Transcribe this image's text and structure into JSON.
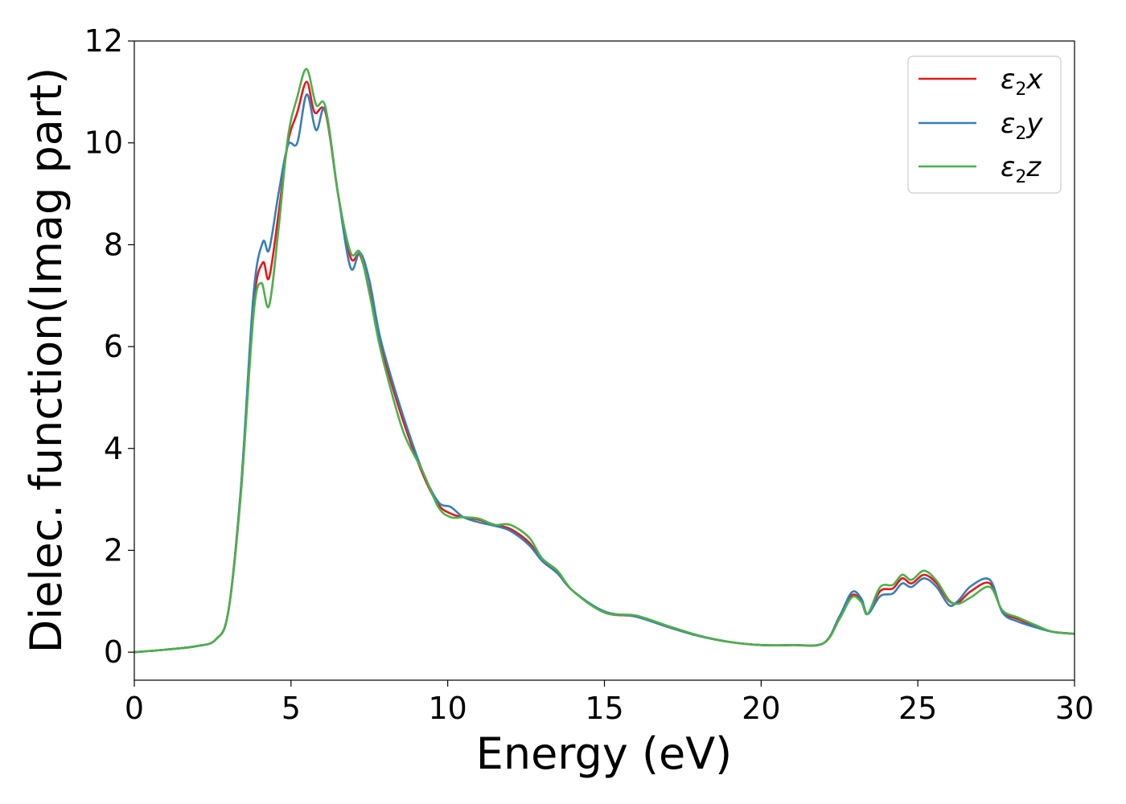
{
  "chart_data": {
    "type": "line",
    "title": "",
    "xlabel": "Energy (eV)",
    "ylabel": "Dielec. function(Imag part)",
    "xlim": [
      0,
      30
    ],
    "ylim": [
      -0.55,
      12
    ],
    "x_ticks": [
      0,
      5,
      10,
      15,
      20,
      25,
      30
    ],
    "y_ticks": [
      0,
      2,
      4,
      6,
      8,
      10,
      12
    ],
    "grid": false,
    "legend": {
      "position": "top-right"
    },
    "series": [
      {
        "name": "ε₂x",
        "legend": {
          "base": "ε",
          "sub": "2",
          "var": "x"
        },
        "color": "#e41a1c",
        "points": [
          [
            0,
            0
          ],
          [
            1,
            0.05
          ],
          [
            2,
            0.12
          ],
          [
            2.6,
            0.25
          ],
          [
            3.0,
            0.8
          ],
          [
            3.4,
            3.2
          ],
          [
            3.8,
            6.8
          ],
          [
            4.1,
            7.65
          ],
          [
            4.3,
            7.35
          ],
          [
            4.6,
            8.6
          ],
          [
            4.9,
            10.0
          ],
          [
            5.2,
            10.6
          ],
          [
            5.5,
            11.2
          ],
          [
            5.75,
            10.6
          ],
          [
            6.1,
            10.6
          ],
          [
            6.5,
            9.0
          ],
          [
            6.9,
            7.75
          ],
          [
            7.2,
            7.8
          ],
          [
            7.5,
            7.1
          ],
          [
            7.8,
            6.2
          ],
          [
            8.1,
            5.5
          ],
          [
            8.6,
            4.5
          ],
          [
            9.2,
            3.5
          ],
          [
            9.7,
            2.9
          ],
          [
            10.1,
            2.72
          ],
          [
            10.5,
            2.65
          ],
          [
            11.0,
            2.6
          ],
          [
            11.5,
            2.5
          ],
          [
            12.0,
            2.42
          ],
          [
            12.6,
            2.15
          ],
          [
            13.0,
            1.8
          ],
          [
            13.5,
            1.55
          ],
          [
            14.0,
            1.2
          ],
          [
            15.0,
            0.78
          ],
          [
            16.0,
            0.7
          ],
          [
            17.0,
            0.5
          ],
          [
            18.0,
            0.32
          ],
          [
            19.0,
            0.2
          ],
          [
            20.0,
            0.14
          ],
          [
            21.0,
            0.14
          ],
          [
            22.0,
            0.18
          ],
          [
            22.5,
            0.7
          ],
          [
            22.9,
            1.12
          ],
          [
            23.2,
            1.0
          ],
          [
            23.4,
            0.75
          ],
          [
            23.8,
            1.2
          ],
          [
            24.2,
            1.25
          ],
          [
            24.5,
            1.45
          ],
          [
            24.8,
            1.35
          ],
          [
            25.2,
            1.52
          ],
          [
            25.6,
            1.35
          ],
          [
            26.0,
            1.0
          ],
          [
            26.3,
            0.98
          ],
          [
            26.7,
            1.2
          ],
          [
            27.3,
            1.35
          ],
          [
            27.7,
            0.8
          ],
          [
            28.2,
            0.65
          ],
          [
            28.8,
            0.5
          ],
          [
            29.3,
            0.4
          ],
          [
            30.0,
            0.36
          ]
        ]
      },
      {
        "name": "ε₂y",
        "legend": {
          "base": "ε",
          "sub": "2",
          "var": "y"
        },
        "color": "#377eb8",
        "points": [
          [
            0,
            0
          ],
          [
            1,
            0.05
          ],
          [
            2,
            0.12
          ],
          [
            2.6,
            0.25
          ],
          [
            3.0,
            0.8
          ],
          [
            3.4,
            3.2
          ],
          [
            3.8,
            7.0
          ],
          [
            4.1,
            8.05
          ],
          [
            4.3,
            7.9
          ],
          [
            4.6,
            9.0
          ],
          [
            4.9,
            9.95
          ],
          [
            5.2,
            10.0
          ],
          [
            5.5,
            10.95
          ],
          [
            5.8,
            10.25
          ],
          [
            6.1,
            10.65
          ],
          [
            6.5,
            9.0
          ],
          [
            6.9,
            7.55
          ],
          [
            7.2,
            7.85
          ],
          [
            7.5,
            7.3
          ],
          [
            7.8,
            6.3
          ],
          [
            8.1,
            5.6
          ],
          [
            8.6,
            4.6
          ],
          [
            9.2,
            3.55
          ],
          [
            9.7,
            2.95
          ],
          [
            10.1,
            2.85
          ],
          [
            10.5,
            2.65
          ],
          [
            11.0,
            2.55
          ],
          [
            11.5,
            2.48
          ],
          [
            12.0,
            2.38
          ],
          [
            12.6,
            2.1
          ],
          [
            13.0,
            1.8
          ],
          [
            13.5,
            1.55
          ],
          [
            14.0,
            1.2
          ],
          [
            15.0,
            0.8
          ],
          [
            16.0,
            0.7
          ],
          [
            17.0,
            0.5
          ],
          [
            18.0,
            0.32
          ],
          [
            19.0,
            0.2
          ],
          [
            20.0,
            0.14
          ],
          [
            21.0,
            0.14
          ],
          [
            22.0,
            0.18
          ],
          [
            22.5,
            0.7
          ],
          [
            22.9,
            1.18
          ],
          [
            23.2,
            1.05
          ],
          [
            23.4,
            0.75
          ],
          [
            23.8,
            1.1
          ],
          [
            24.2,
            1.15
          ],
          [
            24.5,
            1.35
          ],
          [
            24.8,
            1.28
          ],
          [
            25.2,
            1.45
          ],
          [
            25.6,
            1.28
          ],
          [
            26.0,
            0.92
          ],
          [
            26.3,
            1.02
          ],
          [
            26.7,
            1.3
          ],
          [
            27.3,
            1.42
          ],
          [
            27.7,
            0.78
          ],
          [
            28.2,
            0.6
          ],
          [
            28.8,
            0.48
          ],
          [
            29.3,
            0.4
          ],
          [
            30.0,
            0.36
          ]
        ]
      },
      {
        "name": "ε₂z",
        "legend": {
          "base": "ε",
          "sub": "2",
          "var": "z"
        },
        "color": "#4daf4a",
        "points": [
          [
            0,
            0
          ],
          [
            1,
            0.05
          ],
          [
            2,
            0.12
          ],
          [
            2.6,
            0.25
          ],
          [
            3.0,
            0.8
          ],
          [
            3.4,
            3.1
          ],
          [
            3.8,
            6.6
          ],
          [
            4.05,
            7.25
          ],
          [
            4.3,
            6.8
          ],
          [
            4.6,
            8.3
          ],
          [
            4.9,
            10.1
          ],
          [
            5.2,
            10.9
          ],
          [
            5.5,
            11.45
          ],
          [
            5.8,
            10.75
          ],
          [
            6.1,
            10.7
          ],
          [
            6.5,
            9.0
          ],
          [
            6.9,
            7.85
          ],
          [
            7.2,
            7.85
          ],
          [
            7.5,
            7.05
          ],
          [
            7.8,
            6.1
          ],
          [
            8.1,
            5.35
          ],
          [
            8.6,
            4.3
          ],
          [
            9.2,
            3.55
          ],
          [
            9.7,
            2.85
          ],
          [
            10.1,
            2.65
          ],
          [
            10.5,
            2.65
          ],
          [
            11.0,
            2.62
          ],
          [
            11.5,
            2.5
          ],
          [
            12.0,
            2.5
          ],
          [
            12.6,
            2.25
          ],
          [
            13.0,
            1.85
          ],
          [
            13.5,
            1.6
          ],
          [
            14.0,
            1.2
          ],
          [
            15.0,
            0.78
          ],
          [
            16.0,
            0.72
          ],
          [
            17.0,
            0.52
          ],
          [
            18.0,
            0.33
          ],
          [
            19.0,
            0.2
          ],
          [
            20.0,
            0.14
          ],
          [
            21.0,
            0.14
          ],
          [
            22.0,
            0.18
          ],
          [
            22.5,
            0.65
          ],
          [
            22.9,
            1.08
          ],
          [
            23.2,
            0.98
          ],
          [
            23.4,
            0.75
          ],
          [
            23.8,
            1.28
          ],
          [
            24.2,
            1.32
          ],
          [
            24.5,
            1.52
          ],
          [
            24.8,
            1.42
          ],
          [
            25.2,
            1.6
          ],
          [
            25.6,
            1.4
          ],
          [
            26.0,
            1.02
          ],
          [
            26.3,
            0.95
          ],
          [
            26.7,
            1.08
          ],
          [
            27.3,
            1.28
          ],
          [
            27.7,
            0.82
          ],
          [
            28.2,
            0.68
          ],
          [
            28.8,
            0.52
          ],
          [
            29.3,
            0.4
          ],
          [
            30.0,
            0.36
          ]
        ]
      }
    ]
  }
}
